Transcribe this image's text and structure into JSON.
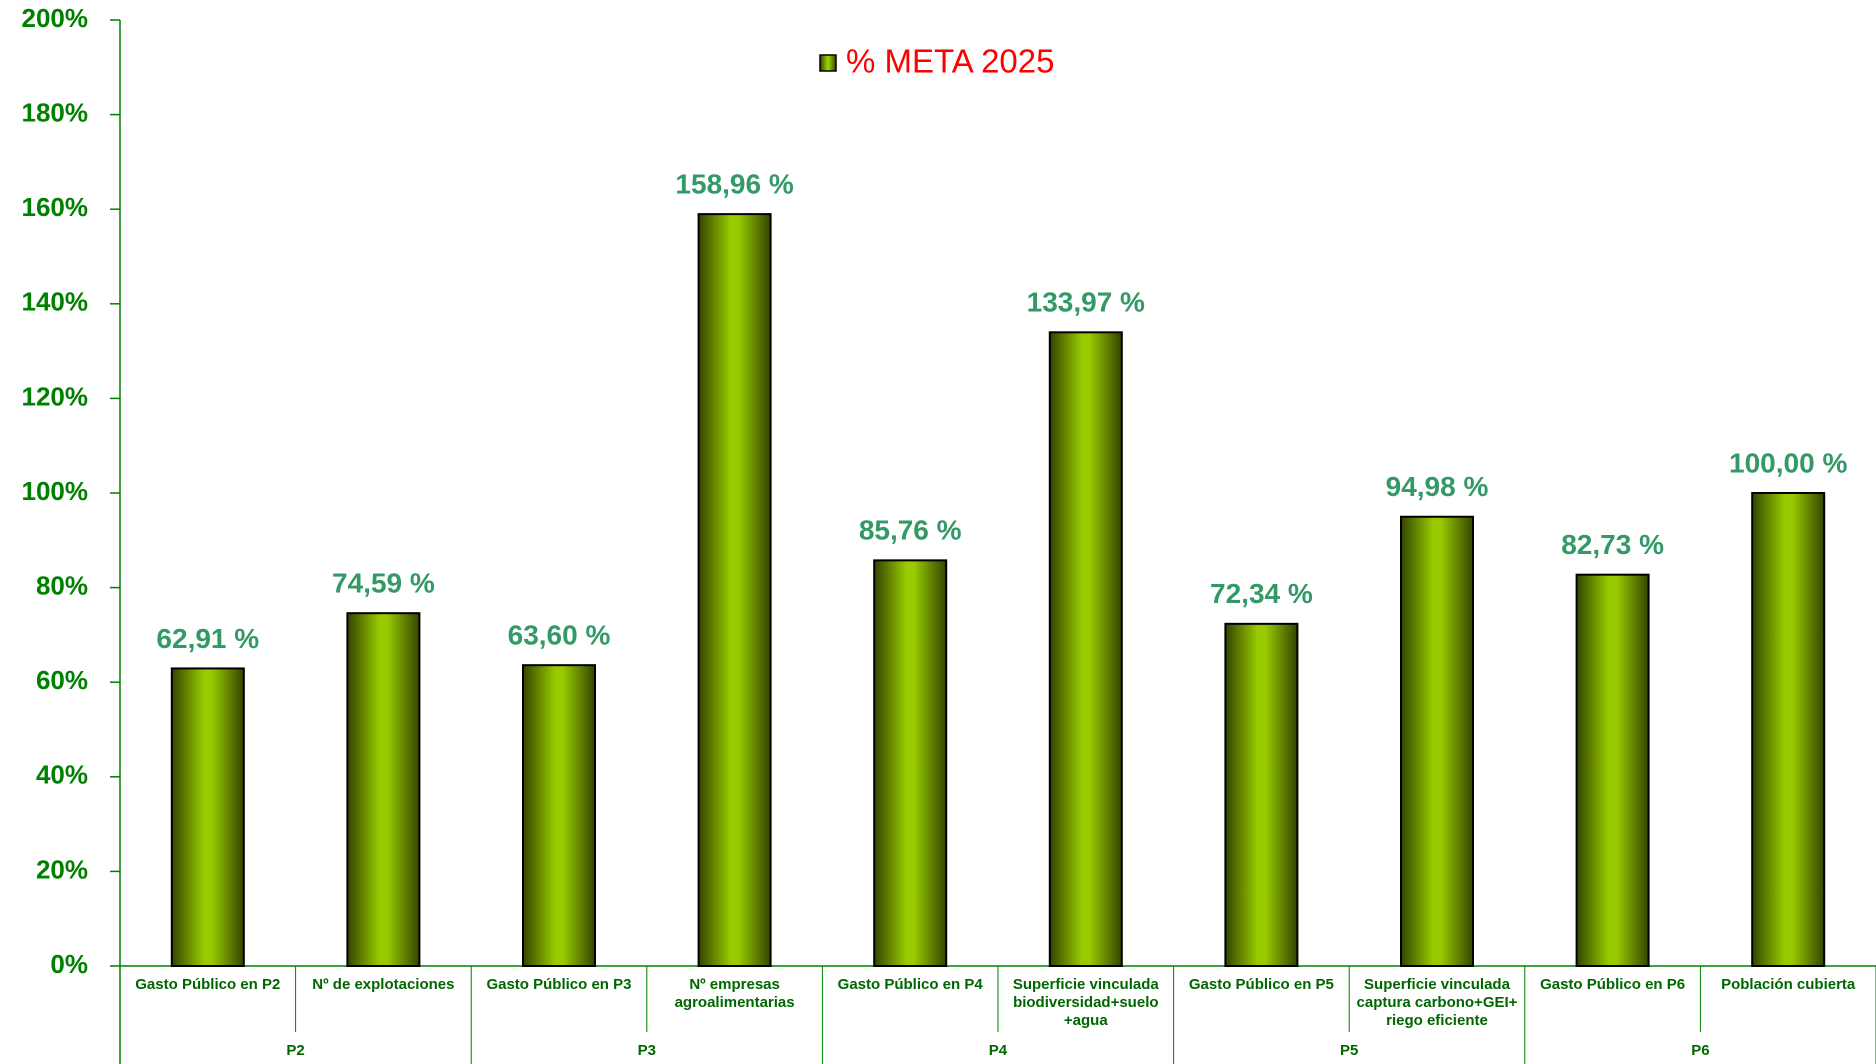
{
  "chart_data": {
    "type": "bar",
    "legend": "% META 2025",
    "categories": [
      "Gasto Público en P2",
      "Nº de explotaciones",
      "Gasto Público en P3",
      "Nº empresas agroalimentarias",
      "Gasto Público en P4",
      "Superficie vinculada biodiversidad+suelo +agua",
      "Gasto Público en P5",
      "Superficie vinculada captura carbono+GEI+ riego eficiente",
      "Gasto Público en P6",
      "Población cubierta"
    ],
    "groups": [
      "P2",
      "P3",
      "P4",
      "P5",
      "P6"
    ],
    "values": [
      62.91,
      74.59,
      63.6,
      158.96,
      85.76,
      133.97,
      72.34,
      94.98,
      82.73,
      100.0
    ],
    "value_labels": [
      "62,91 %",
      "74,59 %",
      "63,60 %",
      "158,96 %",
      "85,76 %",
      "133,97 %",
      "72,34 %",
      "94,98 %",
      "82,73 %",
      "100,00 %"
    ],
    "color": "#99cc00",
    "ylim": [
      0,
      200
    ],
    "yticks": [
      {
        "value": 0,
        "label": "0%"
      },
      {
        "value": 20,
        "label": "20%"
      },
      {
        "value": 40,
        "label": "40%"
      },
      {
        "value": 60,
        "label": "60%"
      },
      {
        "value": 80,
        "label": "80%"
      },
      {
        "value": 100,
        "label": "100%"
      },
      {
        "value": 120,
        "label": "120%"
      },
      {
        "value": 140,
        "label": "140%"
      },
      {
        "value": 160,
        "label": "160%"
      },
      {
        "value": 180,
        "label": "180%"
      },
      {
        "value": 200,
        "label": "200%"
      }
    ]
  }
}
